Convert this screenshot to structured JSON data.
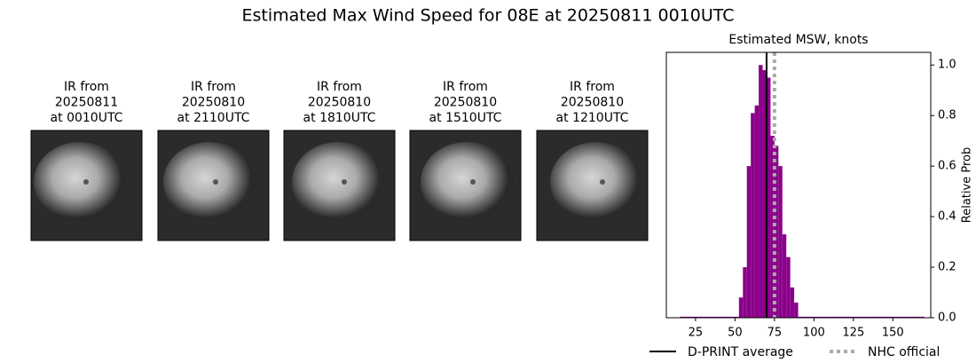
{
  "title": "Estimated Max Wind Speed for 08E at 20250811 0010UTC",
  "images": [
    {
      "title": [
        "IR from",
        "20250811",
        "at 0010UTC"
      ]
    },
    {
      "title": [
        "IR from",
        "20250810",
        "at 2110UTC"
      ]
    },
    {
      "title": [
        "IR from",
        "20250810",
        "at 1810UTC"
      ]
    },
    {
      "title": [
        "IR from",
        "20250810",
        "at 1510UTC"
      ]
    },
    {
      "title": [
        "IR from",
        "20250810",
        "at 1210UTC"
      ]
    }
  ],
  "chart_data": {
    "type": "histogram",
    "title": "Estimated MSW, knots",
    "y_label": "Relative Prob",
    "color": "#8b008b",
    "bins": [
      15,
      17.5,
      20,
      22.5,
      25,
      27.5,
      30,
      32.5,
      35,
      37.5,
      40,
      42.5,
      45,
      47.5,
      50,
      52.5,
      55,
      57.5,
      60,
      62.5,
      65,
      67.5,
      70,
      72.5,
      75,
      77.5,
      80,
      82.5,
      85,
      87.5,
      90,
      92.5,
      95,
      97.5,
      100,
      102.5,
      105,
      107.5,
      110,
      112.5,
      115,
      117.5,
      120,
      122.5,
      125,
      127.5,
      130,
      132.5,
      135,
      137.5,
      140,
      142.5,
      145,
      147.5,
      150,
      152.5,
      155,
      157.5,
      160,
      162.5,
      165,
      167.5,
      170
    ],
    "values": [
      0.004,
      0.004,
      0.004,
      0.004,
      0.004,
      0.004,
      0.004,
      0.004,
      0.004,
      0.004,
      0.004,
      0.004,
      0.004,
      0.004,
      0.004,
      0.08,
      0.2,
      0.6,
      0.81,
      0.84,
      1.0,
      0.98,
      0.95,
      0.72,
      0.68,
      0.6,
      0.33,
      0.24,
      0.12,
      0.06,
      0.004,
      0.004,
      0.004,
      0.004,
      0.004,
      0.004,
      0.004,
      0.004,
      0.004,
      0.004,
      0.004,
      0.004,
      0.004,
      0.004,
      0.004,
      0.004,
      0.004,
      0.004,
      0.004,
      0.004,
      0.004,
      0.004,
      0.004,
      0.004,
      0.004,
      0.004,
      0.004,
      0.004,
      0.004,
      0.004,
      0.004,
      0.004
    ],
    "xlim": [
      6.5,
      174
    ],
    "ylim": [
      0,
      1.05
    ],
    "xticks": [
      25,
      50,
      75,
      100,
      125,
      150
    ],
    "yticks": [
      {
        "value": 0,
        "label": "0.0"
      },
      0.2,
      0.4,
      0.6,
      0.8,
      {
        "value": 1,
        "label": "1.0"
      }
    ],
    "lines": [
      {
        "name": "D-PRINT average",
        "value": 70,
        "color": "#000000",
        "style": "solid"
      },
      {
        "name": "NHC official",
        "value": 75,
        "color": "#aaaaaa",
        "style": "dotted"
      }
    ],
    "legend": "bottom"
  }
}
